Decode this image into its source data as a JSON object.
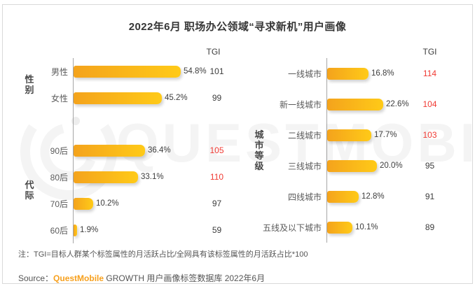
{
  "title": "2022年6月 职场办公领域“寻求新机”用户画像",
  "watermark": "QUESTMOBILE",
  "note": "注：TGI=目标人群某个标签属性的月活跃占比/全网具有该标签属性的月活跃占比*100",
  "source": {
    "prefix": "Source：",
    "brand": "QuestMobile",
    "suffix": " GROWTH 用户画像标签数据库 2022年6月"
  },
  "left_chart": {
    "tgi_header": "TGI"
  },
  "right_chart": {
    "tgi_header": "TGI"
  },
  "colors": {
    "bar_start": "#f4a31c",
    "bar_end": "#ffca18",
    "tgi_highlight": "#f03a33",
    "brand_orange": "#f7a01d",
    "axis": "#a6a6a6"
  },
  "chart_data": [
    {
      "type": "bar",
      "orientation": "horizontal",
      "title": "性别",
      "categories": [
        "男性",
        "女性"
      ],
      "values": [
        54.8,
        45.2
      ],
      "unit": "%",
      "tgi": [
        101,
        99
      ],
      "tgi_highlight": [
        false,
        false
      ]
    },
    {
      "type": "bar",
      "orientation": "horizontal",
      "title": "代际",
      "categories": [
        "90后",
        "80后",
        "70后",
        "60后"
      ],
      "values": [
        36.4,
        33.1,
        10.2,
        1.9
      ],
      "unit": "%",
      "tgi": [
        105,
        110,
        97,
        59
      ],
      "tgi_highlight": [
        true,
        true,
        false,
        false
      ]
    },
    {
      "type": "bar",
      "orientation": "horizontal",
      "title": "城市等级",
      "categories": [
        "一线城市",
        "新一线城市",
        "二线城市",
        "三线城市",
        "四线城市",
        "五线及以下城市"
      ],
      "values": [
        16.8,
        22.6,
        17.7,
        20.0,
        12.8,
        10.1
      ],
      "unit": "%",
      "tgi": [
        114,
        104,
        103,
        95,
        91,
        89
      ],
      "tgi_highlight": [
        true,
        true,
        true,
        false,
        false,
        false
      ]
    }
  ]
}
